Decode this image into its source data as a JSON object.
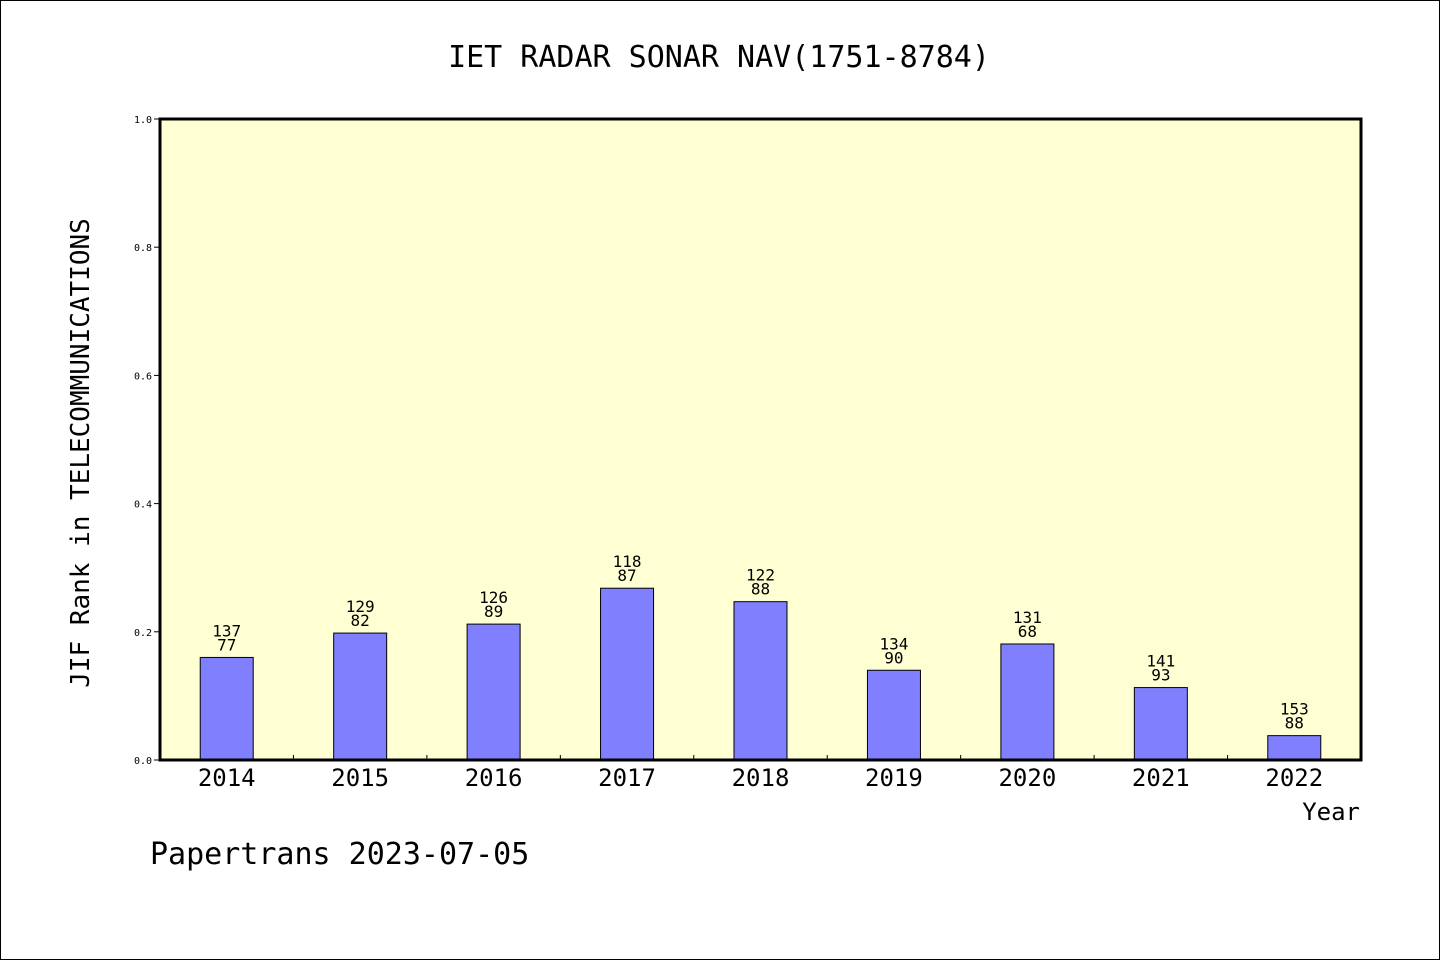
{
  "chart_data": {
    "type": "bar",
    "title": "IET RADAR SONAR NAV(1751-8784)",
    "xlabel": "Year",
    "ylabel": "JIF Rank in TELECOMMUNICATIONS",
    "ylim": [
      0,
      1.0
    ],
    "yticks": [
      "0.0",
      "0.2",
      "0.4",
      "0.6",
      "0.8",
      "1.0"
    ],
    "grid": false,
    "categories": [
      "2014",
      "2015",
      "2016",
      "2017",
      "2018",
      "2019",
      "2020",
      "2021",
      "2022"
    ],
    "values": [
      0.16,
      0.198,
      0.212,
      0.268,
      0.247,
      0.14,
      0.181,
      0.113,
      0.038
    ],
    "labels_top": [
      "137",
      "129",
      "126",
      "118",
      "122",
      "134",
      "131",
      "141",
      "153"
    ],
    "labels_bottom": [
      "77",
      "82",
      "89",
      "87",
      "88",
      "90",
      "68",
      "93",
      "88"
    ],
    "colors": {
      "plot_background": "#ffffd4",
      "bar_fill": "#8080ff",
      "bar_stroke": "#000000"
    }
  },
  "footer": "Papertrans 2023-07-05"
}
